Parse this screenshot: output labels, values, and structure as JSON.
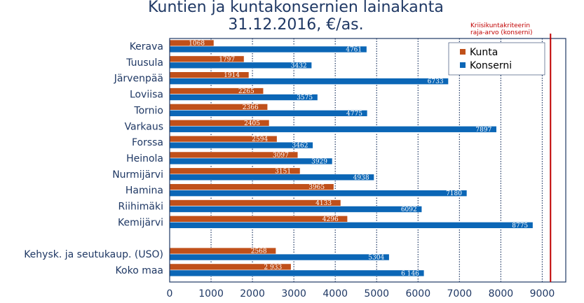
{
  "chart_data": {
    "type": "bar",
    "orientation": "horizontal",
    "title_line1": "Kuntien ja kuntakonsernien lainakanta",
    "title_line2": "31.12.2016, €/as.",
    "categories": [
      "Kerava",
      "Tuusula",
      "Järvenpää",
      "Loviisa",
      "Tornio",
      "Varkaus",
      "Forssa",
      "Heinola",
      "Nurmijärvi",
      "Hamina",
      "Riihimäki",
      "Kemijärvi",
      "",
      "Kehysk. ja seutukaup. (USO)",
      "Koko maa"
    ],
    "series": [
      {
        "name": "Kunta",
        "color": "#c0501a",
        "values": [
          1068,
          1797,
          1914,
          2265,
          2366,
          2405,
          2594,
          3097,
          3151,
          3965,
          4133,
          4296,
          null,
          2568,
          2933
        ],
        "labels": [
          "1068",
          "1797",
          "1914",
          "2265",
          "2366",
          "2405",
          "2594",
          "3097",
          "3151",
          "3965",
          "4133",
          "4296",
          "",
          "2568",
          "2 933"
        ]
      },
      {
        "name": "Konserni",
        "color": "#0b66b6",
        "values": [
          4761,
          3432,
          6733,
          3575,
          4775,
          7897,
          3462,
          3929,
          4938,
          7180,
          6092,
          8775,
          null,
          5304,
          6146
        ],
        "labels": [
          "4761",
          "3432",
          "6733",
          "3575",
          "4775",
          "7897",
          "3462",
          "3929",
          "4938",
          "7180",
          "6092",
          "8775",
          "",
          "5304",
          "6 146"
        ]
      }
    ],
    "x_ticks": [
      0,
      1000,
      2000,
      3000,
      4000,
      5000,
      6000,
      7000,
      8000,
      9000
    ],
    "x_tick_labels": [
      "0",
      "1000",
      "2000",
      "3000",
      "4000",
      "5000",
      "6000",
      "7000",
      "8000",
      "9000"
    ],
    "xlim": [
      0,
      9600
    ],
    "grid": "vertical dotted",
    "legend_position": "top-right",
    "threshold": {
      "value": 9200,
      "color": "#c00000",
      "label_line1": "Kriisikuntakriteerin",
      "label_line2": "raja-arvo (konserni)"
    },
    "colors": {
      "text": "#1f3864",
      "axis": "#1f3864",
      "grid": "#1f3864"
    }
  }
}
